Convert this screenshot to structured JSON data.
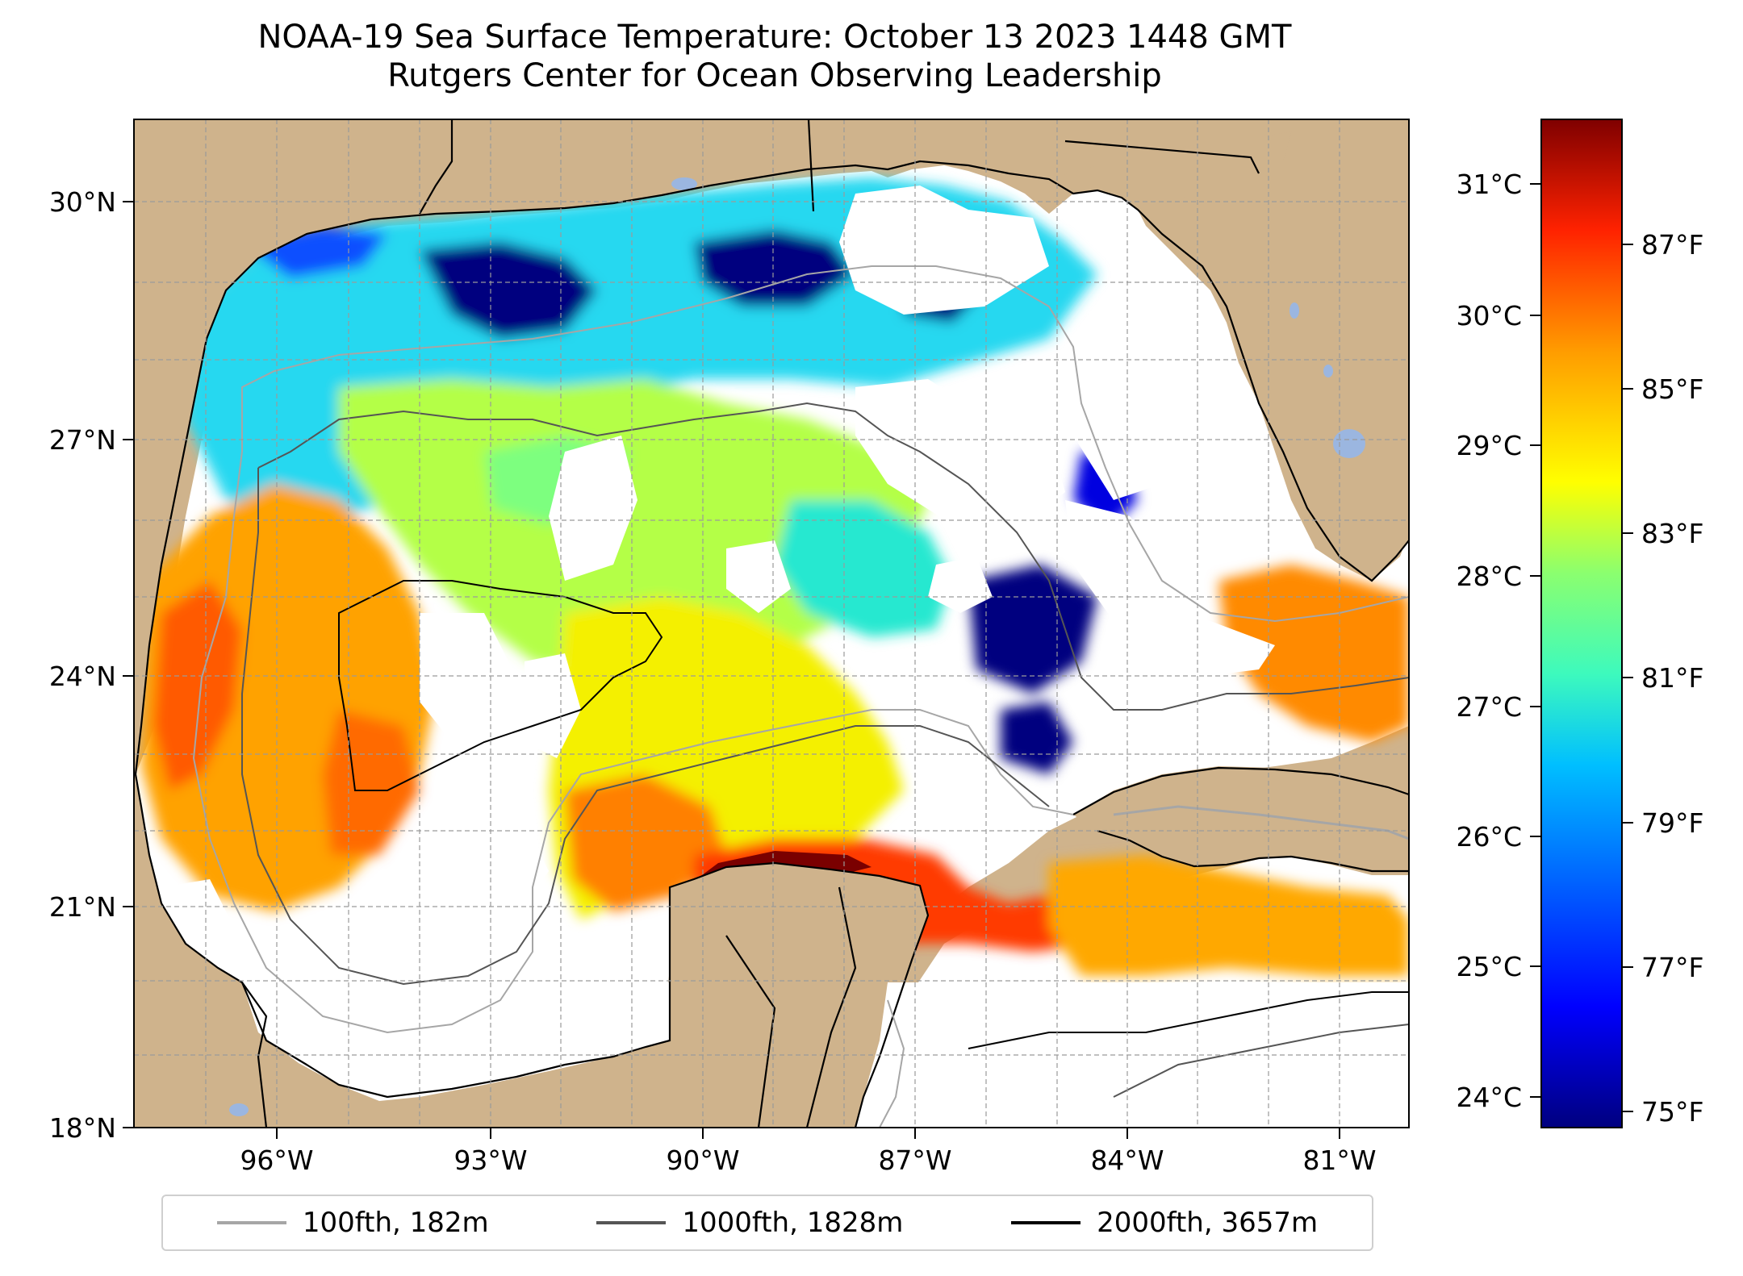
{
  "title_line1": "NOAA-19 Sea Surface Temperature: October 13 2023 1448 GMT",
  "title_line2": "Rutgers Center for Ocean Observing Leadership",
  "lat_labels": [
    "30°N",
    "27°N",
    "24°N",
    "21°N",
    "18°N"
  ],
  "lon_labels": [
    "96°W",
    "93°W",
    "90°W",
    "87°W",
    "84°W",
    "81°W"
  ],
  "colorbar": {
    "celsius_labels": [
      "31°C",
      "30°C",
      "29°C",
      "28°C",
      "27°C",
      "26°C",
      "25°C",
      "24°C"
    ],
    "fahrenheit_labels": [
      "87°F",
      "85°F",
      "83°F",
      "81°F",
      "79°F",
      "77°F",
      "75°F"
    ],
    "colormap": [
      "#00007f",
      "#0000ff",
      "#00bfff",
      "#3dfabd",
      "#8bff6f",
      "#ffff00",
      "#ff9c00",
      "#ff2200",
      "#7f0000"
    ]
  },
  "legend": [
    {
      "label": "100fth, 182m",
      "color": "#a6a6a6"
    },
    {
      "label": "1000fth, 1828m",
      "color": "#555555"
    },
    {
      "label": "2000fth, 3657m",
      "color": "#000000"
    }
  ],
  "colors": {
    "land": "#cfb38c",
    "no_data": "#ffffff",
    "lakes": "#9bb6e0"
  }
}
